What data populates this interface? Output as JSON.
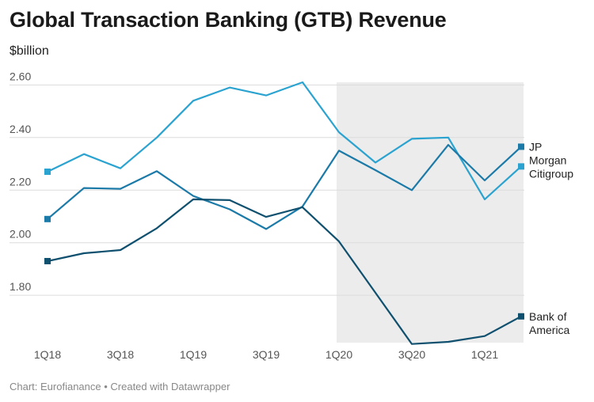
{
  "title": "Global Transaction Banking (GTB) Revenue",
  "subtitle": "$billion",
  "footer": "Chart: Eurofianance • Created with Datawrapper",
  "chart_data": {
    "type": "line",
    "x": [
      "1Q18",
      "2Q18",
      "3Q18",
      "4Q18",
      "1Q19",
      "2Q19",
      "3Q19",
      "4Q19",
      "1Q20",
      "2Q20",
      "3Q20",
      "4Q20",
      "1Q21",
      "2Q21"
    ],
    "x_tick_labels": [
      "1Q18",
      "3Q18",
      "1Q19",
      "3Q19",
      "1Q20",
      "3Q20",
      "1Q21"
    ],
    "y_ticks": [
      "2.60",
      "2.40",
      "2.20",
      "2.00",
      "1.80"
    ],
    "ylim": [
      1.62,
      2.61
    ],
    "grid": true,
    "highlight_range": [
      "1Q20",
      "2Q21"
    ],
    "series": [
      {
        "name": "Citigroup",
        "label_lines": [
          "Citigroup"
        ],
        "color": "#2ba3d0",
        "values": [
          2.27,
          2.337,
          2.283,
          2.4,
          2.54,
          2.59,
          2.56,
          2.61,
          2.42,
          2.305,
          2.395,
          2.4,
          2.165,
          2.29
        ]
      },
      {
        "name": "JP Morgan",
        "label_lines": [
          "JP",
          "Morgan"
        ],
        "color": "#1b7aa8",
        "values": [
          2.09,
          2.208,
          2.205,
          2.272,
          2.178,
          2.127,
          2.052,
          2.138,
          2.35,
          2.276,
          2.2,
          2.372,
          2.237,
          2.365
        ]
      },
      {
        "name": "Bank of America",
        "label_lines": [
          "Bank of",
          "America"
        ],
        "color": "#10506f",
        "values": [
          1.93,
          1.96,
          1.972,
          2.055,
          2.165,
          2.162,
          2.098,
          2.135,
          2.005,
          1.81,
          1.615,
          1.623,
          1.645,
          1.72
        ]
      }
    ]
  }
}
